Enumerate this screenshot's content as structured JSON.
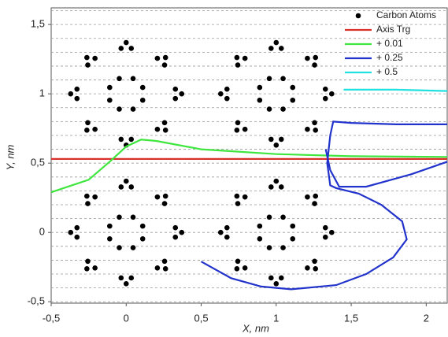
{
  "chart_data": {
    "type": "scatter",
    "xlabel": "X, nm",
    "ylabel": "Y, nm",
    "xlim": [
      -0.5,
      2.14
    ],
    "ylim": [
      -0.51,
      1.62
    ],
    "xticks": [
      {
        "value": -0.5,
        "label": "-0,5"
      },
      0,
      {
        "value": 0.5,
        "label": "0,5"
      },
      1,
      {
        "value": 1.5,
        "label": "1,5"
      },
      2
    ],
    "yticks": [
      {
        "value": -0.5,
        "label": "-0,5"
      },
      0,
      {
        "value": 0.5,
        "label": "0,5"
      },
      1,
      {
        "value": 1.5,
        "label": "1,5"
      }
    ],
    "yminorticks": [
      -0.4,
      -0.3,
      -0.2,
      -0.1,
      0.1,
      0.2,
      0.3,
      0.4,
      0.6,
      0.7,
      0.8,
      0.9,
      1.1,
      1.2,
      1.3,
      1.4,
      1.6
    ],
    "grid": true,
    "legend": "upper right",
    "series": [
      {
        "name": "Carbon Atoms",
        "color": "#000000",
        "mode": "markers",
        "x": [
          0.11,
          0.046,
          -0.046,
          -0.11,
          -0.11,
          -0.046,
          0.046,
          0.11,
          0.37,
          0.328,
          0.328,
          0.262,
          0.208,
          0.256,
          0,
          -0.034,
          0.034,
          -0.262,
          -0.208,
          -0.256,
          -0.37,
          -0.328,
          -0.328,
          -0.262,
          -0.208,
          -0.256,
          0,
          -0.034,
          0.034,
          0.262,
          0.208,
          0.256,
          1.11,
          1.046,
          0.954,
          0.89,
          0.89,
          0.954,
          1.046,
          1.11,
          1.37,
          1.328,
          1.328,
          1.262,
          1.208,
          1.256,
          1,
          0.966,
          1.034,
          0.738,
          0.792,
          0.744,
          0.63,
          0.672,
          0.672,
          0.738,
          0.792,
          0.744,
          1,
          0.966,
          1.034,
          1.262,
          1.208,
          1.256,
          0.11,
          0.046,
          -0.046,
          -0.11,
          -0.11,
          -0.046,
          0.046,
          0.11,
          0.37,
          0.328,
          0.328,
          0.262,
          0.208,
          0.256,
          0,
          -0.034,
          0.034,
          -0.262,
          -0.208,
          -0.256,
          -0.37,
          -0.328,
          -0.328,
          -0.262,
          -0.208,
          -0.256,
          0,
          -0.034,
          0.034,
          0.262,
          0.208,
          0.256,
          1.11,
          1.046,
          0.954,
          0.89,
          0.89,
          0.954,
          1.046,
          1.11,
          1.37,
          1.328,
          1.328,
          1.262,
          1.208,
          1.256,
          1,
          0.966,
          1.034,
          0.738,
          0.792,
          0.744,
          0.63,
          0.672,
          0.672,
          0.738,
          0.792,
          0.744,
          1,
          0.966,
          1.034,
          1.262,
          1.208,
          1.256
        ],
        "y": [
          1.046,
          1.11,
          1.11,
          1.046,
          0.954,
          0.89,
          0.89,
          0.954,
          1,
          1.034,
          0.966,
          1.262,
          1.256,
          1.208,
          1.37,
          1.328,
          1.328,
          1.262,
          1.256,
          1.208,
          1,
          1.034,
          0.966,
          0.738,
          0.744,
          0.792,
          0.63,
          0.672,
          0.672,
          0.738,
          0.744,
          0.792,
          1.046,
          1.11,
          1.11,
          1.046,
          0.954,
          0.89,
          0.89,
          0.954,
          1,
          1.034,
          0.966,
          1.262,
          1.256,
          1.208,
          1.37,
          1.328,
          1.328,
          1.262,
          1.256,
          1.208,
          1,
          1.034,
          0.966,
          0.738,
          0.744,
          0.792,
          0.63,
          0.672,
          0.672,
          0.738,
          0.744,
          0.792,
          0.046,
          0.11,
          0.11,
          0.046,
          -0.046,
          -0.11,
          -0.11,
          -0.046,
          0,
          0.034,
          -0.034,
          0.262,
          0.256,
          0.208,
          0.37,
          0.328,
          0.328,
          0.262,
          0.256,
          0.208,
          0,
          0.034,
          -0.034,
          -0.262,
          -0.256,
          -0.208,
          -0.37,
          -0.328,
          -0.328,
          -0.262,
          -0.256,
          -0.208,
          0.046,
          0.11,
          0.11,
          0.046,
          -0.046,
          -0.11,
          -0.11,
          -0.046,
          0,
          0.034,
          -0.034,
          0.262,
          0.256,
          0.208,
          0.37,
          0.328,
          0.328,
          0.262,
          0.256,
          0.208,
          0,
          0.034,
          -0.034,
          -0.262,
          -0.256,
          -0.208,
          -0.37,
          -0.328,
          -0.328,
          -0.262,
          -0.256,
          -0.208
        ]
      },
      {
        "name": "Axis Trg",
        "color": "#d9302a",
        "mode": "lines",
        "x": [
          -0.5,
          2.14
        ],
        "y": [
          0.53,
          0.53
        ]
      },
      {
        "name": "+ 0.01",
        "color": "#3ee63e",
        "mode": "lines",
        "x": [
          -0.5,
          -0.25,
          -0.1,
          0,
          0.1,
          0.2,
          0.5,
          1,
          1.5,
          2.14
        ],
        "y": [
          0.29,
          0.38,
          0.52,
          0.62,
          0.67,
          0.66,
          0.6,
          0.565,
          0.55,
          0.545
        ]
      },
      {
        "name": "+ 0.25",
        "color": "#2233cc",
        "mode": "lines",
        "x": [
          0.5,
          0.7,
          0.9,
          1.1,
          1.4,
          1.6,
          1.78,
          1.87,
          1.84,
          1.7,
          1.55,
          1.4,
          1.36,
          1.34,
          1.36,
          1.38,
          1.5,
          1.8,
          2.14,
          null,
          1.33,
          1.36,
          1.42,
          1.6,
          1.9,
          2.14
        ],
        "y": [
          -0.21,
          -0.33,
          -0.39,
          -0.41,
          -0.38,
          -0.3,
          -0.18,
          -0.05,
          0.08,
          0.2,
          0.28,
          0.32,
          0.34,
          0.5,
          0.7,
          0.8,
          0.79,
          0.78,
          0.78,
          null,
          0.6,
          0.45,
          0.33,
          0.33,
          0.42,
          0.51
        ]
      },
      {
        "name": "+ 0.5",
        "color": "#22e0e0",
        "mode": "lines",
        "x": [
          1.45,
          1.8,
          2.14
        ],
        "y": [
          1.03,
          1.03,
          1.02
        ]
      }
    ]
  }
}
